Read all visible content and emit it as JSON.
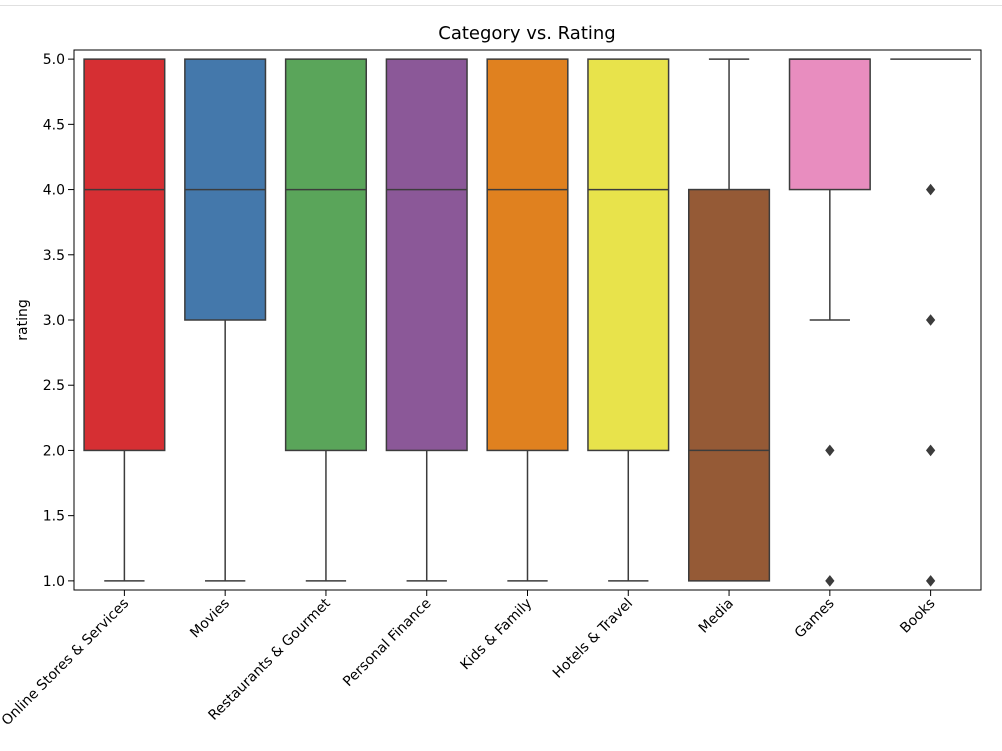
{
  "chart_data": {
    "type": "box",
    "title": "Category vs. Rating",
    "xlabel": "",
    "ylabel": "rating",
    "ylim": [
      0.93,
      5.07
    ],
    "yticks": [
      1.0,
      1.5,
      2.0,
      2.5,
      3.0,
      3.5,
      4.0,
      4.5,
      5.0
    ],
    "ytick_labels": [
      "1.0",
      "1.5",
      "2.0",
      "2.5",
      "3.0",
      "3.5",
      "4.0",
      "4.5",
      "5.0"
    ],
    "grid": false,
    "categories": [
      "Online Stores & Services",
      "Movies",
      "Restaurants & Gourmet",
      "Personal Finance",
      "Kids & Family",
      "Hotels & Travel",
      "Media",
      "Games",
      "Books"
    ],
    "boxes": [
      {
        "category": "Online Stores & Services",
        "whisker_low": 1.0,
        "q1": 2.0,
        "median": 4.0,
        "q3": 5.0,
        "whisker_high": 5.0,
        "outliers": [],
        "color": "#d62f33"
      },
      {
        "category": "Movies",
        "whisker_low": 1.0,
        "q1": 3.0,
        "median": 4.0,
        "q3": 5.0,
        "whisker_high": 5.0,
        "outliers": [],
        "color": "#4478ab"
      },
      {
        "category": "Restaurants & Gourmet",
        "whisker_low": 1.0,
        "q1": 2.0,
        "median": 4.0,
        "q3": 5.0,
        "whisker_high": 5.0,
        "outliers": [],
        "color": "#5aa55a"
      },
      {
        "category": "Personal Finance",
        "whisker_low": 1.0,
        "q1": 2.0,
        "median": 4.0,
        "q3": 5.0,
        "whisker_high": 5.0,
        "outliers": [],
        "color": "#8b5898"
      },
      {
        "category": "Kids & Family",
        "whisker_low": 1.0,
        "q1": 2.0,
        "median": 4.0,
        "q3": 5.0,
        "whisker_high": 5.0,
        "outliers": [],
        "color": "#e0811f"
      },
      {
        "category": "Hotels & Travel",
        "whisker_low": 1.0,
        "q1": 2.0,
        "median": 4.0,
        "q3": 5.0,
        "whisker_high": 5.0,
        "outliers": [],
        "color": "#e8e34b"
      },
      {
        "category": "Media",
        "whisker_low": 1.0,
        "q1": 1.0,
        "median": 2.0,
        "q3": 4.0,
        "whisker_high": 5.0,
        "outliers": [],
        "color": "#955a36"
      },
      {
        "category": "Games",
        "whisker_low": 3.0,
        "q1": 4.0,
        "median": 5.0,
        "q3": 5.0,
        "whisker_high": 5.0,
        "outliers": [
          1.0,
          2.0
        ],
        "color": "#e88dbf"
      },
      {
        "category": "Books",
        "whisker_low": 5.0,
        "q1": 5.0,
        "median": 5.0,
        "q3": 5.0,
        "whisker_high": 5.0,
        "outliers": [
          1.0,
          2.0,
          3.0,
          4.0
        ],
        "color": "#999999"
      }
    ],
    "line_color": "#3c3c3c"
  }
}
